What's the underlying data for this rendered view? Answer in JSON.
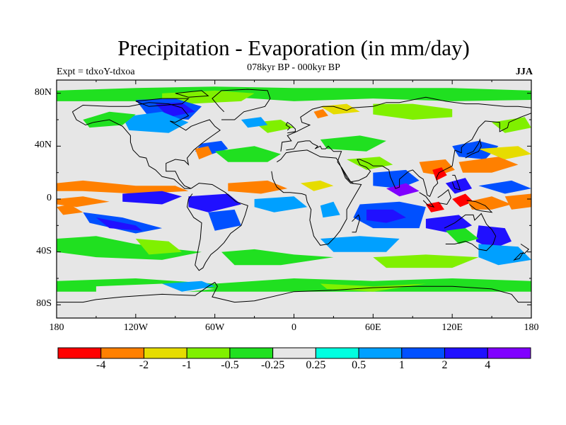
{
  "title": "Precipitation - Evaporation (in mm/day)",
  "subtitle": "078kyr BP - 000kyr BP",
  "experiment_label": "Expt = tdxoY-tdxoa",
  "season": "JJA",
  "map": {
    "projection": "cylindrical equidistant",
    "lon_range": [
      -180,
      180
    ],
    "lat_range": [
      -90,
      90
    ],
    "x_ticks": [
      "180",
      "120W",
      "60W",
      "0",
      "60E",
      "120E",
      "180"
    ],
    "y_ticks": [
      "80N",
      "40N",
      "0",
      "40S",
      "80S"
    ],
    "background_color": "#e6e6e6",
    "coastline_color": "#000000"
  },
  "colorbar": {
    "colors": [
      "#ff0000",
      "#ff8000",
      "#e6dc00",
      "#80f000",
      "#20e020",
      "#e6e6e6",
      "#00ffe0",
      "#00a0ff",
      "#0050ff",
      "#2010ff",
      "#8000ff"
    ],
    "labels": [
      "-4",
      "-2",
      "-1",
      "-0.5",
      "-0.25",
      "0.25",
      "0.5",
      "1",
      "2",
      "4"
    ]
  }
}
